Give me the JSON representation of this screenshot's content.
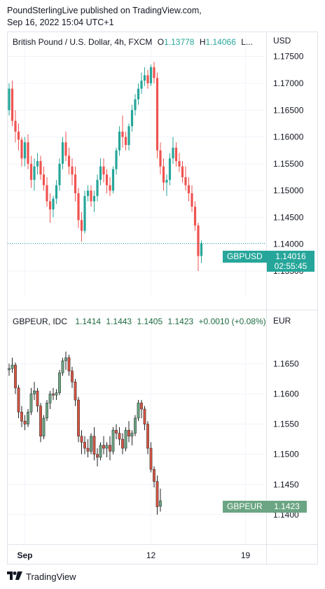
{
  "publisher": {
    "line1": "PoundSterlingLive published on TradingView.com,",
    "line2": "Sep 16, 2022 15:04 UTC+1"
  },
  "colors": {
    "up": "#26a69a",
    "down": "#ef5350",
    "up2": "#6ba583",
    "down2": "#d75442",
    "wick2": "#222222"
  },
  "top_pane": {
    "legend": {
      "symbol": "British Pound / U.S. Dollar, 4h, FXCM",
      "o_label": "O",
      "o_value": "1.13778",
      "h_label": "H",
      "h_value": "1.14066",
      "more": "L..."
    },
    "axis_unit": "USD",
    "symbol_tag": "GBPUSD",
    "last_price": "1.14016",
    "countdown": "02:55:45"
  },
  "bottom_pane": {
    "legend": {
      "symbol": "GBPEUR, IDC",
      "o": "1.1414",
      "h": "1.1443",
      "l": "1.1405",
      "c": "1.1423",
      "change": "+0.0010 (+0.08%)"
    },
    "axis_unit": "EUR",
    "symbol_tag": "GBPEUR",
    "last_price": "1.1423"
  },
  "x_axis": {
    "ticks": [
      {
        "label": "Sep",
        "bold": true,
        "index": 5
      },
      {
        "label": "12",
        "bold": false,
        "index": 45
      },
      {
        "label": "19",
        "bold": false,
        "index": 75
      }
    ]
  },
  "footer": {
    "brand": "TradingView",
    "logo_icon": "tradingview-logo-icon"
  },
  "chart_data": [
    {
      "type": "candlestick",
      "title": "British Pound / U.S. Dollar, 4h, FXCM",
      "x_axis": "time (4h bars)",
      "ylabel": "USD",
      "ylim": [
        1.132,
        1.176
      ],
      "yticks": [
        1.135,
        1.14,
        1.145,
        1.15,
        1.155,
        1.16,
        1.165,
        1.17,
        1.175
      ],
      "ytick_labels": [
        "1.13500",
        "1.14000",
        "1.14500",
        "1.15000",
        "1.15500",
        "1.16000",
        "1.16500",
        "1.17000",
        "1.17500"
      ],
      "grid": true,
      "last_value": 1.14016,
      "ohlc": [
        [
          1.165,
          1.17,
          1.164,
          1.169
        ],
        [
          1.169,
          1.1705,
          1.162,
          1.163
        ],
        [
          1.163,
          1.165,
          1.159,
          1.161
        ],
        [
          1.161,
          1.1625,
          1.1575,
          1.1595
        ],
        [
          1.1595,
          1.16,
          1.1545,
          1.156
        ],
        [
          1.156,
          1.16,
          1.1545,
          1.159
        ],
        [
          1.159,
          1.1605,
          1.154,
          1.155
        ],
        [
          1.155,
          1.1565,
          1.1505,
          1.152
        ],
        [
          1.152,
          1.156,
          1.15,
          1.1545
        ],
        [
          1.1545,
          1.157,
          1.153,
          1.1555
        ],
        [
          1.1555,
          1.1565,
          1.152,
          1.153
        ],
        [
          1.153,
          1.1545,
          1.15,
          1.151
        ],
        [
          1.151,
          1.1525,
          1.147,
          1.148
        ],
        [
          1.148,
          1.1495,
          1.144,
          1.1465
        ],
        [
          1.1465,
          1.149,
          1.145,
          1.1485
        ],
        [
          1.1485,
          1.152,
          1.1475,
          1.151
        ],
        [
          1.151,
          1.156,
          1.15,
          1.155
        ],
        [
          1.155,
          1.16,
          1.154,
          1.159
        ],
        [
          1.159,
          1.161,
          1.1555,
          1.1565
        ],
        [
          1.1565,
          1.158,
          1.153,
          1.1545
        ],
        [
          1.1545,
          1.156,
          1.151,
          1.153
        ],
        [
          1.153,
          1.1545,
          1.148,
          1.1495
        ],
        [
          1.1495,
          1.1505,
          1.143,
          1.1445
        ],
        [
          1.1445,
          1.146,
          1.1405,
          1.1425
        ],
        [
          1.1425,
          1.15,
          1.142,
          1.149
        ],
        [
          1.149,
          1.151,
          1.148,
          1.15
        ],
        [
          1.15,
          1.151,
          1.147,
          1.148
        ],
        [
          1.148,
          1.15,
          1.146,
          1.149
        ],
        [
          1.149,
          1.153,
          1.148,
          1.152
        ],
        [
          1.152,
          1.156,
          1.151,
          1.1545
        ],
        [
          1.1545,
          1.156,
          1.1515,
          1.153
        ],
        [
          1.153,
          1.154,
          1.1495,
          1.151
        ],
        [
          1.151,
          1.1525,
          1.149,
          1.15
        ],
        [
          1.15,
          1.1545,
          1.1495,
          1.154
        ],
        [
          1.154,
          1.158,
          1.153,
          1.1575
        ],
        [
          1.1575,
          1.162,
          1.1565,
          1.161
        ],
        [
          1.161,
          1.164,
          1.158,
          1.16
        ],
        [
          1.16,
          1.161,
          1.1575,
          1.1585
        ],
        [
          1.1585,
          1.1625,
          1.1575,
          1.162
        ],
        [
          1.162,
          1.166,
          1.161,
          1.165
        ],
        [
          1.165,
          1.168,
          1.164,
          1.167
        ],
        [
          1.167,
          1.17,
          1.166,
          1.169
        ],
        [
          1.169,
          1.172,
          1.168,
          1.1705
        ],
        [
          1.1705,
          1.173,
          1.1695,
          1.1715
        ],
        [
          1.1715,
          1.1725,
          1.169,
          1.17
        ],
        [
          1.17,
          1.1735,
          1.1695,
          1.173
        ],
        [
          1.173,
          1.174,
          1.17,
          1.171
        ],
        [
          1.171,
          1.172,
          1.156,
          1.1575
        ],
        [
          1.1575,
          1.159,
          1.153,
          1.1545
        ],
        [
          1.1545,
          1.156,
          1.15,
          1.1515
        ],
        [
          1.1515,
          1.153,
          1.149,
          1.152
        ],
        [
          1.152,
          1.157,
          1.151,
          1.156
        ],
        [
          1.156,
          1.16,
          1.155,
          1.158
        ],
        [
          1.158,
          1.159,
          1.1545,
          1.1555
        ],
        [
          1.1555,
          1.157,
          1.1535,
          1.1545
        ],
        [
          1.1545,
          1.1555,
          1.1515,
          1.1525
        ],
        [
          1.1525,
          1.1545,
          1.15,
          1.151
        ],
        [
          1.151,
          1.1525,
          1.148,
          1.1495
        ],
        [
          1.1495,
          1.151,
          1.146,
          1.147
        ],
        [
          1.147,
          1.148,
          1.1425,
          1.1435
        ],
        [
          1.1435,
          1.144,
          1.135,
          1.1378
        ],
        [
          1.1378,
          1.1407,
          1.1365,
          1.1402
        ]
      ]
    },
    {
      "type": "candlestick",
      "title": "GBPEUR, IDC",
      "x_axis": "time (4h bars)",
      "ylabel": "EUR",
      "ylim": [
        1.1365,
        1.1705
      ],
      "yticks": [
        1.14,
        1.145,
        1.15,
        1.155,
        1.16,
        1.165
      ],
      "ytick_labels": [
        "1.1400",
        "1.1450",
        "1.1500",
        "1.1550",
        "1.1600",
        "1.1650"
      ],
      "grid": true,
      "last_value": 1.1423,
      "ohlc": [
        [
          1.164,
          1.165,
          1.163,
          1.1642
        ],
        [
          1.1642,
          1.166,
          1.1635,
          1.1648
        ],
        [
          1.1648,
          1.1652,
          1.16,
          1.161
        ],
        [
          1.161,
          1.1615,
          1.156,
          1.157
        ],
        [
          1.157,
          1.158,
          1.1545,
          1.1555
        ],
        [
          1.1555,
          1.1565,
          1.154,
          1.155
        ],
        [
          1.155,
          1.1575,
          1.1545,
          1.157
        ],
        [
          1.157,
          1.161,
          1.1565,
          1.16
        ],
        [
          1.16,
          1.162,
          1.159,
          1.1605
        ],
        [
          1.1605,
          1.161,
          1.157,
          1.158
        ],
        [
          1.158,
          1.1585,
          1.152,
          1.153
        ],
        [
          1.153,
          1.1565,
          1.1525,
          1.156
        ],
        [
          1.156,
          1.159,
          1.1555,
          1.1585
        ],
        [
          1.1585,
          1.1605,
          1.1575,
          1.16
        ],
        [
          1.16,
          1.161,
          1.159,
          1.1598
        ],
        [
          1.1598,
          1.1608,
          1.159,
          1.1602
        ],
        [
          1.1602,
          1.164,
          1.1598,
          1.1635
        ],
        [
          1.1635,
          1.166,
          1.163,
          1.1655
        ],
        [
          1.1655,
          1.167,
          1.164,
          1.166
        ],
        [
          1.166,
          1.1665,
          1.163,
          1.1638
        ],
        [
          1.1638,
          1.1645,
          1.161,
          1.162
        ],
        [
          1.162,
          1.1625,
          1.158,
          1.159
        ],
        [
          1.159,
          1.1595,
          1.152,
          1.153
        ],
        [
          1.153,
          1.154,
          1.15,
          1.152
        ],
        [
          1.152,
          1.153,
          1.15,
          1.151
        ],
        [
          1.151,
          1.1525,
          1.1495,
          1.1505
        ],
        [
          1.1505,
          1.1535,
          1.15,
          1.153
        ],
        [
          1.153,
          1.1545,
          1.149,
          1.15
        ],
        [
          1.15,
          1.151,
          1.148,
          1.1495
        ],
        [
          1.1495,
          1.152,
          1.149,
          1.1515
        ],
        [
          1.1515,
          1.153,
          1.15,
          1.151
        ],
        [
          1.151,
          1.152,
          1.1495,
          1.1515
        ],
        [
          1.1515,
          1.153,
          1.149,
          1.1505
        ],
        [
          1.1505,
          1.1545,
          1.15,
          1.154
        ],
        [
          1.154,
          1.155,
          1.1525,
          1.1535
        ],
        [
          1.1535,
          1.1545,
          1.1515,
          1.1525
        ],
        [
          1.1525,
          1.1535,
          1.15,
          1.151
        ],
        [
          1.151,
          1.1545,
          1.1505,
          1.154
        ],
        [
          1.154,
          1.1555,
          1.152,
          1.153
        ],
        [
          1.153,
          1.154,
          1.1515,
          1.1535
        ],
        [
          1.1535,
          1.1565,
          1.153,
          1.156
        ],
        [
          1.156,
          1.159,
          1.1555,
          1.1585
        ],
        [
          1.1585,
          1.159,
          1.156,
          1.1575
        ],
        [
          1.1575,
          1.158,
          1.154,
          1.155
        ],
        [
          1.155,
          1.1555,
          1.15,
          1.151
        ],
        [
          1.151,
          1.152,
          1.147,
          1.1475
        ],
        [
          1.1475,
          1.148,
          1.1445,
          1.1455
        ],
        [
          1.1455,
          1.1465,
          1.14,
          1.1413
        ],
        [
          1.1414,
          1.1443,
          1.1405,
          1.1423
        ]
      ]
    }
  ]
}
